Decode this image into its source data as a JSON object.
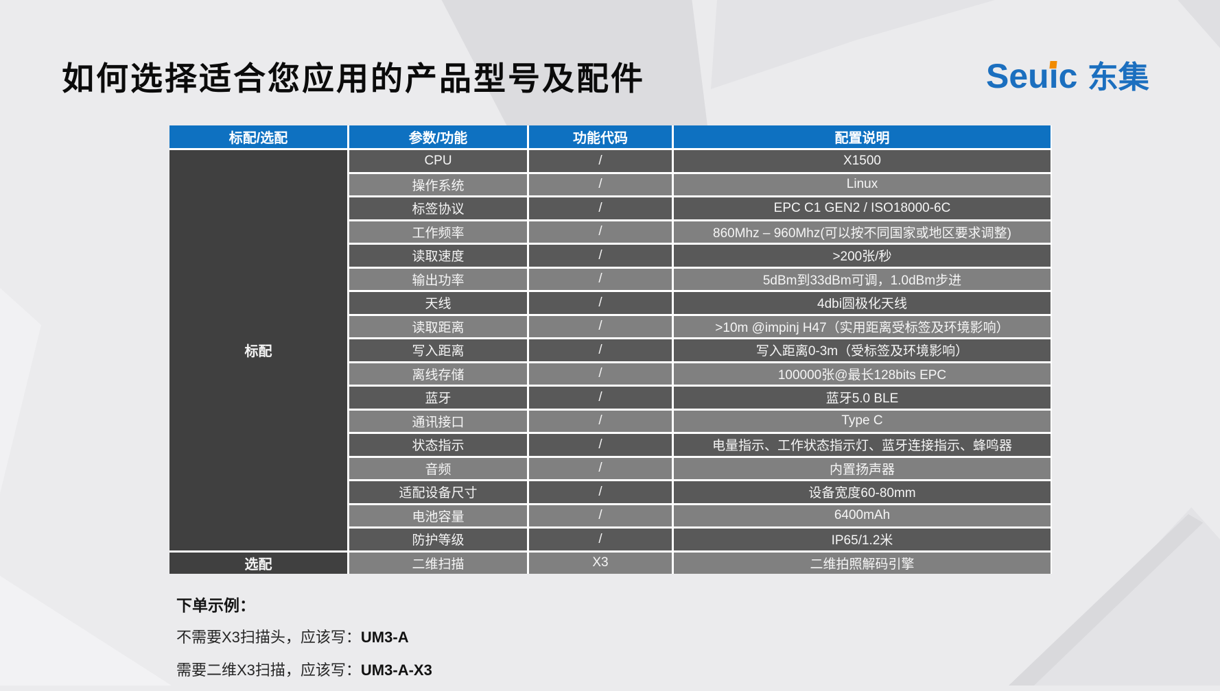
{
  "title": "如何选择适合您应用的产品型号及配件",
  "logo": {
    "latin_pre": "Seu",
    "latin_i": "ı",
    "latin_post": "c",
    "cjk": "东集"
  },
  "table": {
    "headers": [
      "标配/选配",
      "参数/功能",
      "功能代码",
      "配置说明"
    ],
    "standard_label": "标配",
    "rows": [
      {
        "param": "CPU",
        "code": "/",
        "desc": "X1500"
      },
      {
        "param": "操作系统",
        "code": "/",
        "desc": "Linux"
      },
      {
        "param": "标签协议",
        "code": "/",
        "desc": "EPC C1 GEN2 / ISO18000-6C"
      },
      {
        "param": "工作频率",
        "code": "/",
        "desc": "860Mhz – 960Mhz(可以按不同国家或地区要求调整)"
      },
      {
        "param": "读取速度",
        "code": "/",
        "desc": ">200张/秒"
      },
      {
        "param": "输出功率",
        "code": "/",
        "desc": "5dBm到33dBm可调，1.0dBm步进"
      },
      {
        "param": "天线",
        "code": "/",
        "desc": "4dbi圆极化天线"
      },
      {
        "param": "读取距离",
        "code": "/",
        "desc": ">10m @impinj H47（实用距离受标签及环境影响）"
      },
      {
        "param": "写入距离",
        "code": "/",
        "desc": "写入距离0-3m（受标签及环境影响）"
      },
      {
        "param": "离线存储",
        "code": "/",
        "desc": "100000张@最长128bits EPC"
      },
      {
        "param": "蓝牙",
        "code": "/",
        "desc": "蓝牙5.0 BLE"
      },
      {
        "param": "通讯接口",
        "code": "/",
        "desc": "Type C"
      },
      {
        "param": "状态指示",
        "code": "/",
        "desc": "电量指示、工作状态指示灯、蓝牙连接指示、蜂鸣器"
      },
      {
        "param": "音频",
        "code": "/",
        "desc": "内置扬声器"
      },
      {
        "param": "适配设备尺寸",
        "code": "/",
        "desc": "设备宽度60-80mm"
      },
      {
        "param": "电池容量",
        "code": "/",
        "desc": "6400mAh"
      },
      {
        "param": "防护等级",
        "code": "/",
        "desc": "IP65/1.2米"
      }
    ],
    "optional": {
      "label": "选配",
      "param": "二维扫描",
      "code": "X3",
      "desc": "二维拍照解码引擎"
    }
  },
  "notes": {
    "heading": "下单示例：",
    "lines": [
      {
        "text": "不需要X3扫描头，应该写：",
        "model": "UM3-A"
      },
      {
        "text": "需要二维X3扫描，应该写：",
        "model": "UM3-A-X3"
      }
    ]
  },
  "colors": {
    "bg": "#ebebed",
    "header_blue": "#0e71c1",
    "row_dark": "#595959",
    "row_light": "#808080",
    "side_dark": "#404040",
    "brand": "#1b6fbf",
    "brand_accent": "#f18b00"
  }
}
